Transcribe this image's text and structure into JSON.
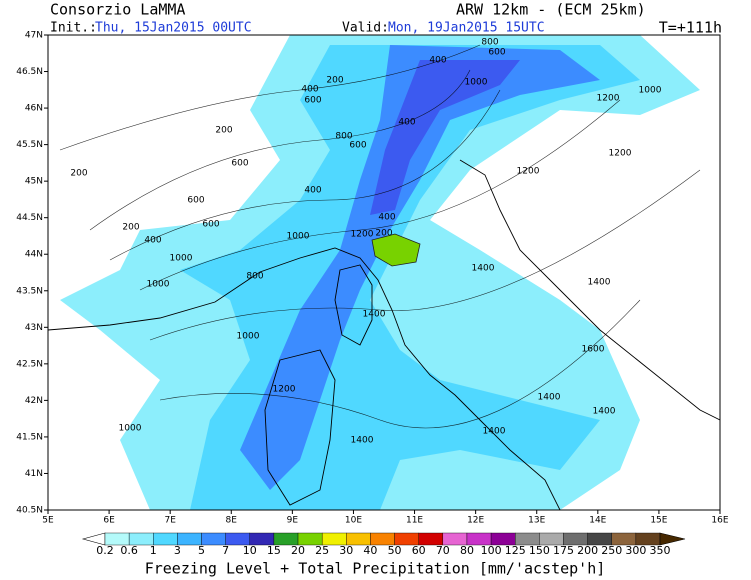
{
  "header": {
    "title": "Consorzio LaMMA",
    "init_label": "Init.:",
    "init": "Thu, 15Jan2015 00UTC",
    "valid_label": "Valid:",
    "valid": "Mon, 19Jan2015 15UTC",
    "model": "ARW 12km - (ECM 25km)",
    "lead": "T=+111h"
  },
  "map": {
    "lat_labels": [
      "47N",
      "46.5N",
      "46N",
      "45.5N",
      "45N",
      "44.5N",
      "44N",
      "43.5N",
      "43N",
      "42.5N",
      "42N",
      "41.5N",
      "41N",
      "40.5N"
    ],
    "lon_labels": [
      "5E",
      "6E",
      "7E",
      "8E",
      "9E",
      "10E",
      "11E",
      "12E",
      "13E",
      "14E",
      "15E",
      "16E"
    ],
    "contour_labels": [
      "800",
      "600",
      "400",
      "1000",
      "1000",
      "1200",
      "200",
      "400",
      "600",
      "200",
      "600",
      "400",
      "800",
      "600",
      "1200",
      "200",
      "1200",
      "600",
      "400",
      "400",
      "200",
      "600",
      "400",
      "1000",
      "1200",
      "200",
      "1000",
      "800",
      "1000",
      "1400",
      "1400",
      "1400",
      "1000",
      "1600",
      "1200",
      "1400",
      "1400",
      "1000",
      "1400",
      "1400"
    ]
  },
  "colorbar": {
    "labels": [
      "0.2",
      "0.6",
      "1",
      "3",
      "5",
      "7",
      "10",
      "15",
      "20",
      "25",
      "30",
      "40",
      "50",
      "60",
      "70",
      "80",
      "100",
      "125",
      "150",
      "175",
      "200",
      "250",
      "300",
      "350"
    ],
    "colors": [
      "#ffffff",
      "#b4fafa",
      "#8ceefc",
      "#50d8ff",
      "#3cb4ff",
      "#3c8cff",
      "#3c5af0",
      "#3228b4",
      "#28a028",
      "#78d200",
      "#f0f000",
      "#f8c000",
      "#f88200",
      "#f04000",
      "#d20000",
      "#e664d2",
      "#c832c8",
      "#8c0096",
      "#8c8c8c",
      "#aaaaaa",
      "#6e6e6e",
      "#464646",
      "#8c643c",
      "#64411e",
      "#462800"
    ],
    "title": "Freezing Level + Total Precipitation [mm/'acstep'h]"
  }
}
